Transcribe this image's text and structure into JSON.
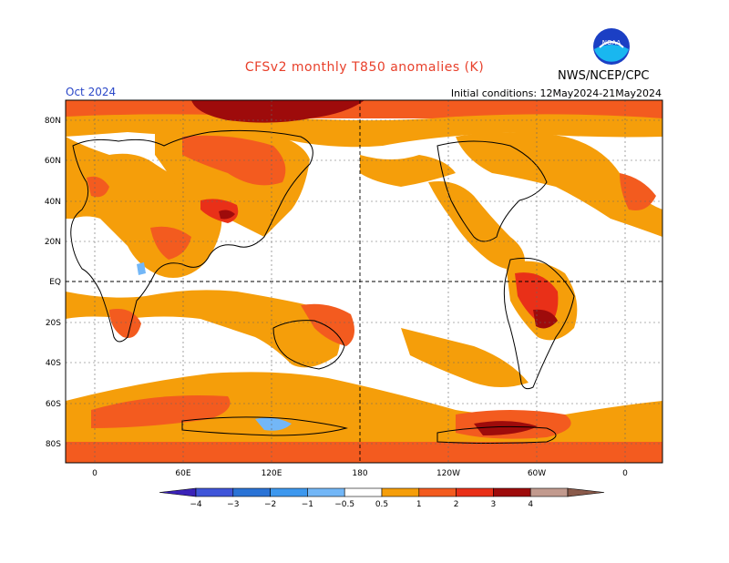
{
  "header": {
    "title": "CFSv2 monthly T850 anomalies (K)",
    "agency": "NWS/NCEP/CPC",
    "month": "Oct 2024",
    "initial_conditions": "Initial conditions: 12May2024-21May2024",
    "logo_text": "NOAA"
  },
  "map": {
    "lat_labels": [
      "80N",
      "60N",
      "40N",
      "20N",
      "EQ",
      "20S",
      "40S",
      "60S",
      "80S"
    ],
    "lon_labels": [
      "0",
      "60E",
      "120E",
      "180",
      "120W",
      "60W",
      "0"
    ]
  },
  "legend": {
    "colors": [
      "#3a22b8",
      "#3f55d9",
      "#2a73d6",
      "#3d98ee",
      "#73b7f7",
      "#ffffff",
      "#f59e0a",
      "#f35b1f",
      "#e93018",
      "#9e0b0b",
      "#c29a8e",
      "#8a5a4a"
    ],
    "labels": [
      "−4",
      "−3",
      "−2",
      "−1",
      "−0.5",
      "0.5",
      "1",
      "2",
      "3",
      "4"
    ]
  }
}
